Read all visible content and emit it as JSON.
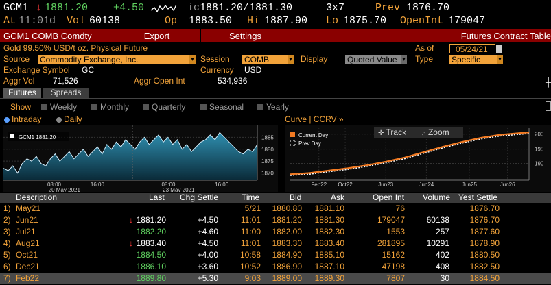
{
  "ticker": {
    "symbol": "GCM1",
    "arrow": "↓",
    "last": "1881.20",
    "change": "+4.50",
    "ic_label": "ic",
    "bid_ask": "1881.20/1881.30",
    "size": "3x7",
    "prev_label": "Prev",
    "prev": "1876.70"
  },
  "line2": {
    "at_label": "At",
    "time": "11:01d",
    "vol_label": "Vol",
    "vol": "60138",
    "op_label": "Op",
    "op": "1883.50",
    "hi_label": "Hi",
    "hi": "1887.90",
    "lo_label": "Lo",
    "lo": "1875.70",
    "oi_label": "OpenInt",
    "oi": "179047"
  },
  "tabbar": {
    "title": "GCM1 COMB Comdty",
    "export": "Export",
    "settings": "Settings",
    "right": "Futures Contract Table"
  },
  "info": {
    "description": "Gold 99.50% USD/t oz. Physical Future",
    "as_of_label": "As of",
    "as_of": "05/24/21",
    "source_label": "Source",
    "source": "Commodity Exchange, Inc.",
    "session_label": "Session",
    "session": "COMB",
    "display_label": "Display",
    "display": "Quoted Value",
    "type_label": "Type",
    "type": "Specific",
    "exchange_symbol_label": "Exchange Symbol",
    "exchange_symbol": "GC",
    "currency_label": "Currency",
    "currency": "USD",
    "aggr_vol_label": "Aggr Vol",
    "aggr_vol": "71,526",
    "aggr_oi_label": "Aggr Open Int",
    "aggr_oi": "534,936"
  },
  "subtabs": [
    "Futures",
    "Spreads"
  ],
  "show": {
    "label": "Show",
    "options": [
      "Weekly",
      "Monthly",
      "Quarterly",
      "Seasonal",
      "Yearly"
    ]
  },
  "intraday": {
    "intraday_label": "Intraday",
    "daily_label": "Daily",
    "legend": "GCM1  1881.20",
    "yticks": [
      "1885",
      "1880",
      "1875",
      "1870"
    ],
    "xticks": [
      "08:00",
      "16:00",
      "08:00",
      "16:00"
    ],
    "dates": [
      "20 May 2021",
      "23 May 2021"
    ],
    "chart_data": {
      "type": "area",
      "ylim": [
        1867,
        1890
      ],
      "values": [
        1872,
        1871,
        1873,
        1870,
        1874,
        1876,
        1875,
        1877,
        1874,
        1873,
        1876,
        1878,
        1875,
        1877,
        1879,
        1876,
        1878,
        1880,
        1877,
        1879,
        1881,
        1878,
        1882,
        1880,
        1883,
        1881,
        1884,
        1882,
        1880,
        1883,
        1885,
        1882,
        1884,
        1886,
        1883,
        1885,
        1882,
        1884,
        1880,
        1882,
        1879,
        1881,
        1883,
        1884,
        1886,
        1884,
        1887,
        1885,
        1883,
        1881,
        1879,
        1878,
        1880,
        1879,
        1882
      ]
    }
  },
  "curve": {
    "title": "Curve | CCRV »",
    "legend_current": "Current Day",
    "legend_prev": "Prev Day",
    "track": "Track",
    "zoom": "Zoom",
    "xticks": [
      "Feb22",
      "Oct22",
      "Jun23",
      "Jun24",
      "Jun25",
      "Jun26"
    ],
    "yticks": [
      "200",
      "195",
      "190"
    ],
    "chart_data": {
      "type": "line",
      "x": [
        0,
        0.08,
        0.16,
        0.24,
        0.32,
        0.4,
        0.48,
        0.56,
        0.64,
        0.72,
        0.8,
        0.88,
        1.0
      ],
      "series": [
        {
          "name": "Current Day",
          "values": [
            1878,
            1880,
            1884,
            1888,
            1893,
            1899,
            1906,
            1915,
            1924,
            1932,
            1939,
            1944,
            1948
          ]
        },
        {
          "name": "Prev Day",
          "values": [
            1876,
            1878,
            1882,
            1886,
            1891,
            1897,
            1904,
            1913,
            1922,
            1930,
            1937,
            1942,
            1946
          ]
        }
      ],
      "ylim": [
        1868,
        1955
      ]
    }
  },
  "table": {
    "headers": [
      "Description",
      "Last",
      "Chg Settle",
      "Time",
      "Bid",
      "Ask",
      "Open Int",
      "Volume",
      "Yest Settle"
    ],
    "rows": [
      {
        "n": "1)",
        "desc": "May21",
        "arrow": "",
        "last": "",
        "chg": "",
        "time": "5/21",
        "bid": "1880.80",
        "ask": "1881.10",
        "oi": "76",
        "vol": "",
        "yest": "1876.70"
      },
      {
        "n": "2)",
        "desc": "Jun21",
        "arrow": "↓",
        "last": "1881.20",
        "chg": "+4.50",
        "time": "11:01",
        "bid": "1881.20",
        "ask": "1881.30",
        "oi": "179047",
        "vol": "60138",
        "yest": "1876.70"
      },
      {
        "n": "3)",
        "desc": "Jul21",
        "arrow": "",
        "last": "1882.20",
        "chg": "+4.60",
        "time": "11:00",
        "bid": "1882.00",
        "ask": "1882.30",
        "oi": "1553",
        "vol": "257",
        "yest": "1877.60"
      },
      {
        "n": "4)",
        "desc": "Aug21",
        "arrow": "↓",
        "last": "1883.40",
        "chg": "+4.50",
        "time": "11:01",
        "bid": "1883.30",
        "ask": "1883.40",
        "oi": "281895",
        "vol": "10291",
        "yest": "1878.90"
      },
      {
        "n": "5)",
        "desc": "Oct21",
        "arrow": "",
        "last": "1884.50",
        "chg": "+4.00",
        "time": "10:58",
        "bid": "1884.90",
        "ask": "1885.10",
        "oi": "15162",
        "vol": "402",
        "yest": "1880.50"
      },
      {
        "n": "6)",
        "desc": "Dec21",
        "arrow": "",
        "last": "1886.10",
        "chg": "+3.60",
        "time": "10:52",
        "bid": "1886.90",
        "ask": "1887.10",
        "oi": "47198",
        "vol": "408",
        "yest": "1882.50"
      },
      {
        "n": "7)",
        "desc": "Feb22",
        "arrow": "",
        "last": "1889.80",
        "chg": "+5.30",
        "time": "9:03",
        "bid": "1889.00",
        "ask": "1889.30",
        "oi": "7807",
        "vol": "30",
        "yest": "1884.50"
      }
    ]
  }
}
